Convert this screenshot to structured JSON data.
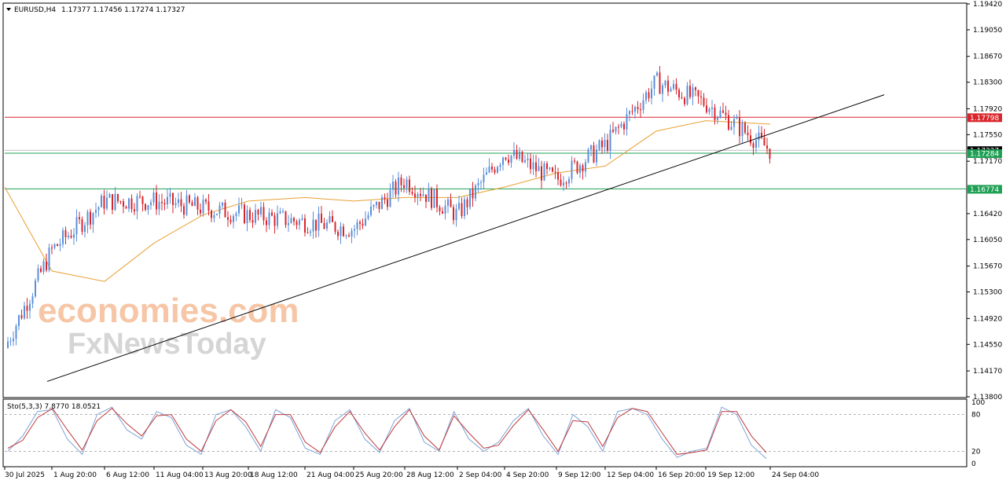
{
  "header": {
    "symbol": "EURUSD,H4",
    "ohlc": "1.17377 1.17456 1.17274 1.17327",
    "dropdown_icon": "triangle-down-icon"
  },
  "watermark": {
    "line1": "economies.com",
    "line2": "FxNewsToday"
  },
  "colors": {
    "bull": "#5b8fd9",
    "bear": "#d9262c",
    "ma": "#e8a033",
    "resistance": "#d9262c",
    "support": "#1fa055",
    "trendline": "#000000",
    "stoch_main": "#7fa3d6",
    "stoch_signal": "#c0393b",
    "watermark_orange": "#f3b48a",
    "watermark_gray": "#c8c8c8"
  },
  "price_levels": [
    {
      "name": "resistance",
      "value": 1.17798,
      "label": "1.17798"
    },
    {
      "name": "current-price",
      "value": 1.17327,
      "label": "1.17327"
    },
    {
      "name": "support-top",
      "value": 1.17284,
      "label": "1.17284"
    },
    {
      "name": "support",
      "value": 1.16774,
      "label": "1.16774"
    }
  ],
  "chart_data": {
    "type": "line",
    "series": [
      {
        "name": "EURUSD",
        "x": [
          "30 Jul 2025",
          "1 Aug 20:00",
          "6 Aug 12:00",
          "11 Aug 04:00",
          "13 Aug 20:00",
          "18 Aug 12:00",
          "21 Aug 04:00",
          "25 Aug 20:00",
          "28 Aug 12:00",
          "2 Sep 04:00",
          "4 Sep 20:00",
          "9 Sep 12:00",
          "12 Sep 04:00",
          "16 Sep 20:00",
          "19 Sep 12:00",
          "24 Sep 04:00"
        ],
        "values": [
          1.145,
          1.159,
          1.166,
          1.166,
          1.165,
          1.164,
          1.163,
          1.162,
          1.169,
          1.164,
          1.173,
          1.169,
          1.174,
          1.183,
          1.18,
          1.1733
        ]
      },
      {
        "values": [
          1.168,
          1.156,
          1.1545,
          1.16,
          1.164,
          1.166,
          1.1665,
          1.166,
          1.1665,
          1.1665,
          1.168,
          1.17,
          1.171,
          1.176,
          1.1775,
          1.177
        ]
      }
    ],
    "ylim": [
      1.138,
      1.1942
    ],
    "y_ticks": [
      "1.19420",
      "1.19050",
      "1.18670",
      "1.18300",
      "1.17920",
      "1.17550",
      "1.17170",
      "1.16420",
      "1.16050",
      "1.15670",
      "1.15300",
      "1.14920",
      "1.14550",
      "1.14170",
      "1.13800"
    ],
    "x_ticks": [
      "30 Jul 2025",
      "1 Aug 20:00",
      "6 Aug 12:00",
      "11 Aug 04:00",
      "13 Aug 20:00",
      "18 Aug 12:00",
      "21 Aug 04:00",
      "25 Aug 20:00",
      "28 Aug 12:00",
      "2 Sep 04:00",
      "4 Sep 20:00",
      "9 Sep 12:00",
      "12 Sep 04:00",
      "16 Sep 20:00",
      "19 Sep 12:00",
      "24 Sep 04:00"
    ],
    "annotations": [
      "ascending trend line",
      "horizontal resistance 1.17798",
      "horizontal support 1.16774"
    ]
  },
  "stochastic": {
    "title": "Sto(5,3,3) 7.8770 18.0521",
    "y_ticks": [
      "100",
      "80",
      "20",
      "0"
    ],
    "ylim": [
      0,
      100
    ],
    "levels": [
      80,
      20
    ],
    "main": [
      20,
      45,
      85,
      88,
      40,
      15,
      80,
      92,
      55,
      40,
      85,
      75,
      30,
      15,
      80,
      88,
      60,
      20,
      88,
      75,
      25,
      15,
      70,
      88,
      40,
      18,
      70,
      90,
      35,
      20,
      85,
      40,
      20,
      35,
      70,
      90,
      45,
      15,
      80,
      60,
      20,
      85,
      90,
      80,
      40,
      10,
      20,
      25,
      92,
      80,
      30,
      8
    ],
    "signal": [
      25,
      38,
      75,
      90,
      55,
      22,
      70,
      90,
      65,
      45,
      78,
      80,
      40,
      20,
      70,
      88,
      68,
      28,
      80,
      80,
      35,
      18,
      60,
      85,
      50,
      22,
      60,
      88,
      45,
      22,
      78,
      50,
      25,
      30,
      62,
      88,
      55,
      20,
      70,
      68,
      28,
      75,
      90,
      85,
      50,
      15,
      18,
      22,
      85,
      85,
      45,
      18
    ]
  }
}
